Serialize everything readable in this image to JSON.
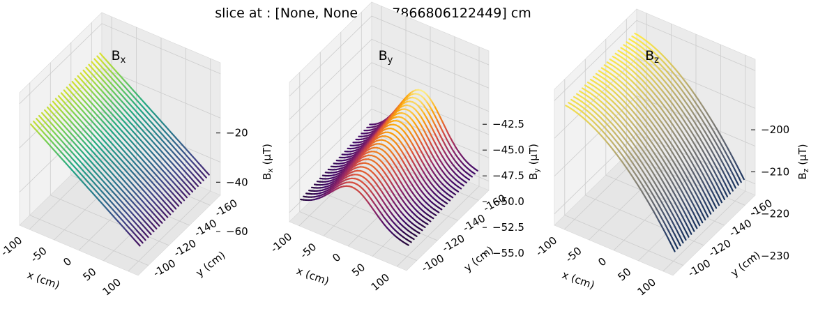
{
  "figure": {
    "suptitle": "slice at : [None, None, -52.7866806122449] cm"
  },
  "chart_data": [
    {
      "type": "surface3d",
      "title_base": "B",
      "title_sub": "x",
      "zlabel_base": "B",
      "zlabel_sub": "x",
      "zlabel_unit": " (μT)",
      "xlabel": "x (cm)",
      "ylabel": "y (cm)",
      "xticks": [
        100,
        50,
        0,
        -50,
        -100
      ],
      "xtick_labels": [
        "100",
        "50",
        "0",
        "-50",
        "-100"
      ],
      "yticks": [
        -100,
        -120,
        -140,
        -160
      ],
      "ytick_labels": [
        "-100",
        "-120",
        "-140",
        "-160"
      ],
      "zticks": [
        -20,
        -40,
        -60
      ],
      "ztick_labels": [
        "−20",
        "−40",
        "−60"
      ],
      "xlim": [
        -120,
        120
      ],
      "ylim": [
        -170,
        -90
      ],
      "zlim": [
        -75,
        -15
      ],
      "colormap": "viridis",
      "surface": "linear",
      "surface_range": [
        -67,
        -28
      ],
      "grid": true
    },
    {
      "type": "surface3d",
      "title_base": "B",
      "title_sub": "y",
      "zlabel_base": "B",
      "zlabel_sub": "y",
      "zlabel_unit": " (μT)",
      "xlabel": "x (cm)",
      "ylabel": "y (cm)",
      "xticks": [
        100,
        50,
        0,
        -50,
        -100
      ],
      "xtick_labels": [
        "100",
        "50",
        "0",
        "-50",
        "-100"
      ],
      "yticks": [
        -100,
        -120,
        -140,
        -160
      ],
      "ytick_labels": [
        "-100",
        "-120",
        "-140",
        "-160"
      ],
      "zticks": [
        -42.5,
        -45.0,
        -47.5,
        -50.0,
        -52.5,
        -55.0
      ],
      "ztick_labels": [
        "−42.5",
        "−45.0",
        "−47.5",
        "−50.0",
        "−52.5",
        "−55.0"
      ],
      "xlim": [
        -120,
        120
      ],
      "ylim": [
        -170,
        -90
      ],
      "zlim": [
        -56,
        -41
      ],
      "colormap": "inferno",
      "surface": "ridge",
      "surface_range": [
        -55,
        -47
      ],
      "grid": true
    },
    {
      "type": "surface3d",
      "title_base": "B",
      "title_sub": "z",
      "zlabel_base": "B",
      "zlabel_sub": "z",
      "zlabel_unit": " (μT)",
      "xlabel": "x (cm)",
      "ylabel": "y (cm)",
      "xticks": [
        100,
        50,
        0,
        -50,
        -100
      ],
      "xtick_labels": [
        "100",
        "50",
        "0",
        "-50",
        "-100"
      ],
      "yticks": [
        -100,
        -120,
        -140,
        -160
      ],
      "ytick_labels": [
        "-100",
        "-120",
        "-140",
        "-160"
      ],
      "zticks": [
        -200,
        -210,
        -220,
        -230
      ],
      "ztick_labels": [
        "−200",
        "−210",
        "−220",
        "−230"
      ],
      "xlim": [
        -120,
        120
      ],
      "ylim": [
        -170,
        -90
      ],
      "zlim": [
        -233,
        -197
      ],
      "colormap": "cividis",
      "surface": "dome",
      "surface_range": [
        -231,
        -201
      ],
      "grid": true
    }
  ]
}
